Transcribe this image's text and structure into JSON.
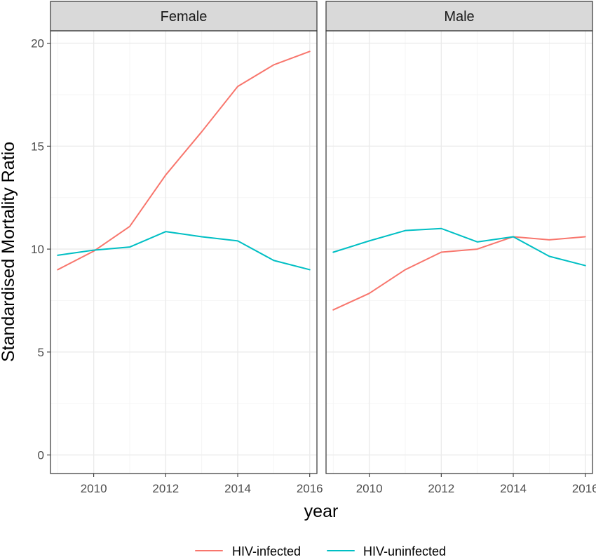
{
  "chart_data": {
    "type": "line",
    "facet_variable": "sex",
    "xlabel": "year",
    "ylabel": "Standardised Mortality Ratio",
    "xlim": [
      2008.8,
      2016.2
    ],
    "ylim": [
      -0.9,
      20.6
    ],
    "x_ticks": [
      2010,
      2012,
      2014,
      2016
    ],
    "y_ticks": [
      0,
      5,
      10,
      15,
      20
    ],
    "grid": true,
    "legend_position": "bottom",
    "colors": {
      "HIV-infected": "#F8766D",
      "HIV-uninfected": "#00BFC4"
    },
    "series_names": [
      "HIV-infected",
      "HIV-uninfected"
    ],
    "panels": [
      {
        "label": "Female",
        "x": [
          2009,
          2010,
          2011,
          2012,
          2013,
          2014,
          2015,
          2016
        ],
        "series": [
          {
            "name": "HIV-infected",
            "values": [
              9.0,
              9.9,
              11.1,
              13.6,
              15.7,
              17.9,
              18.95,
              19.6
            ]
          },
          {
            "name": "HIV-uninfected",
            "values": [
              9.7,
              9.95,
              10.1,
              10.85,
              10.6,
              10.4,
              9.45,
              9.0
            ]
          }
        ]
      },
      {
        "label": "Male",
        "x": [
          2009,
          2010,
          2011,
          2012,
          2013,
          2014,
          2015,
          2016
        ],
        "series": [
          {
            "name": "HIV-infected",
            "values": [
              7.05,
              7.85,
              9.0,
              9.85,
              10.0,
              10.6,
              10.45,
              10.6
            ]
          },
          {
            "name": "HIV-uninfected",
            "values": [
              9.85,
              10.4,
              10.9,
              11.0,
              10.35,
              10.6,
              9.65,
              9.2
            ]
          }
        ]
      }
    ]
  }
}
